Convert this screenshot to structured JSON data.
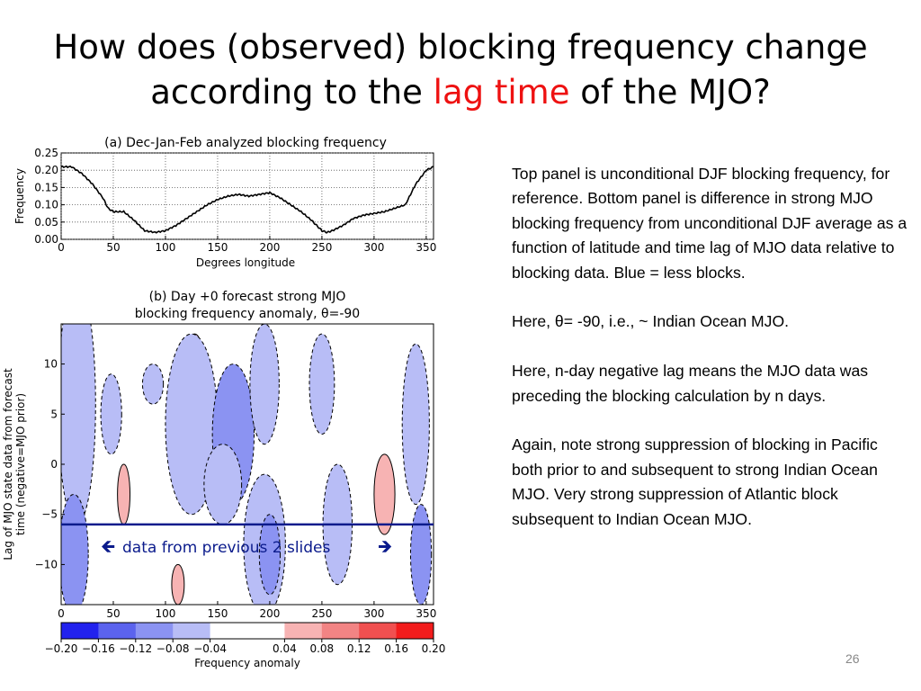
{
  "slide": {
    "title_part1": "How does (observed) blocking frequency change",
    "title_part2_pre": "according to the ",
    "title_highlight": "lag time",
    "title_part2_post": " of the MJO?",
    "highlight_color": "#ee1111",
    "notes": [
      "Top panel is unconditional DJF blocking frequency, for reference.  Bottom panel is difference in strong MJO blocking frequency from unconditional DJF average as a function of latitude and time lag of MJO data relative to blocking data.  Blue = less blocks.",
      "Here, θ= -90, i.e., ~ Indian Ocean MJO.",
      "Here, n-day negative lag means the MJO data was preceding the blocking calculation by n days.",
      "Again, note strong suppression of blocking in Pacific both prior to and subsequent to strong Indian Ocean MJO.  Very strong suppression of Atlantic block subsequent to Indian Ocean MJO."
    ],
    "slide_number": "26"
  },
  "chart_data": [
    {
      "type": "line",
      "title": "(a) Dec-Jan-Feb analyzed blocking frequency",
      "xlabel": "Degrees longitude",
      "ylabel": "Frequency",
      "xlim": [
        0,
        357
      ],
      "ylim": [
        0.0,
        0.25
      ],
      "xticks": [
        "0",
        "50",
        "100",
        "150",
        "200",
        "250",
        "300",
        "350"
      ],
      "yticks": [
        "0.00",
        "0.05",
        "0.10",
        "0.15",
        "0.20",
        "0.25"
      ],
      "grid": true,
      "series": [
        {
          "x": [
            0,
            10,
            20,
            30,
            40,
            45,
            50,
            60,
            70,
            80,
            90,
            100,
            110,
            120,
            130,
            140,
            150,
            160,
            170,
            180,
            190,
            200,
            210,
            220,
            230,
            240,
            245,
            250,
            255,
            260,
            270,
            280,
            290,
            300,
            310,
            320,
            330,
            340,
            350,
            357
          ],
          "y": [
            0.21,
            0.21,
            0.19,
            0.16,
            0.12,
            0.09,
            0.08,
            0.08,
            0.055,
            0.025,
            0.02,
            0.025,
            0.04,
            0.06,
            0.08,
            0.1,
            0.115,
            0.125,
            0.13,
            0.125,
            0.13,
            0.135,
            0.12,
            0.1,
            0.08,
            0.055,
            0.04,
            0.025,
            0.02,
            0.025,
            0.04,
            0.06,
            0.07,
            0.075,
            0.08,
            0.09,
            0.1,
            0.16,
            0.2,
            0.21
          ],
          "color": "#000000"
        }
      ]
    },
    {
      "type": "heatmap",
      "title_line1": "(b) Day +0 forecast strong MJO",
      "title_line2": "blocking frequency anomaly, θ=-90",
      "xlabel": "",
      "ylabel_line1": "Lag of MJO state data from forecast",
      "ylabel_line2": "time (negative=MJO prior)",
      "xlim": [
        0,
        357
      ],
      "ylim": [
        -14,
        14
      ],
      "xticks": [
        "0",
        "50",
        "100",
        "150",
        "200",
        "250",
        "300",
        "350"
      ],
      "yticks": [
        "10",
        "5",
        "0",
        "−5",
        "−10"
      ],
      "annotation": "data from previous 2 slides",
      "annotation_color": "#0b1b8c",
      "reference_lag": -6,
      "colorbar": {
        "label": "Frequency anomaly",
        "ticks": [
          "−0.20",
          "−0.16",
          "−0.12",
          "−0.08",
          "−0.04",
          "0.04",
          "0.08",
          "0.12",
          "0.16",
          "0.20"
        ],
        "colors": [
          "#2222ee",
          "#5b63ee",
          "#8b93f2",
          "#b8bdf6",
          "#ffffff",
          "#ffffff",
          "#f7b3b3",
          "#f28484",
          "#f05050",
          "#f21c1c"
        ]
      },
      "regions": [
        {
          "lon": 20,
          "lag": 11,
          "rx": 10,
          "ry": 3,
          "level": "pos1"
        },
        {
          "lon": 15,
          "lag": 6,
          "rx": 18,
          "ry": 12,
          "level": "neg1"
        },
        {
          "lon": 12,
          "lag": -9,
          "rx": 14,
          "ry": 6,
          "level": "neg2"
        },
        {
          "lon": 48,
          "lag": 5,
          "rx": 10,
          "ry": 4,
          "level": "neg1"
        },
        {
          "lon": 60,
          "lag": -3,
          "rx": 6,
          "ry": 3,
          "level": "pos1"
        },
        {
          "lon": 88,
          "lag": 8,
          "rx": 10,
          "ry": 2,
          "level": "neg1"
        },
        {
          "lon": 128,
          "lag": 11,
          "rx": 7,
          "ry": 2,
          "level": "pos1"
        },
        {
          "lon": 125,
          "lag": 4,
          "rx": 25,
          "ry": 9,
          "level": "neg1"
        },
        {
          "lon": 165,
          "lag": 3,
          "rx": 20,
          "ry": 7,
          "level": "neg2"
        },
        {
          "lon": 155,
          "lag": -2,
          "rx": 18,
          "ry": 4,
          "level": "neg1"
        },
        {
          "lon": 195,
          "lag": 8,
          "rx": 14,
          "ry": 6,
          "level": "neg1"
        },
        {
          "lon": 195,
          "lag": -8,
          "rx": 20,
          "ry": 7,
          "level": "neg1"
        },
        {
          "lon": 200,
          "lag": -9,
          "rx": 10,
          "ry": 4,
          "level": "neg2"
        },
        {
          "lon": 250,
          "lag": 8,
          "rx": 12,
          "ry": 5,
          "level": "neg1"
        },
        {
          "lon": 265,
          "lag": -6,
          "rx": 14,
          "ry": 6,
          "level": "neg1"
        },
        {
          "lon": 310,
          "lag": -3,
          "rx": 10,
          "ry": 4,
          "level": "pos1"
        },
        {
          "lon": 340,
          "lag": 4,
          "rx": 13,
          "ry": 8,
          "level": "neg1"
        },
        {
          "lon": 345,
          "lag": -9,
          "rx": 10,
          "ry": 5,
          "level": "neg2"
        },
        {
          "lon": 112,
          "lag": -12,
          "rx": 6,
          "ry": 2,
          "level": "pos1"
        }
      ]
    }
  ]
}
